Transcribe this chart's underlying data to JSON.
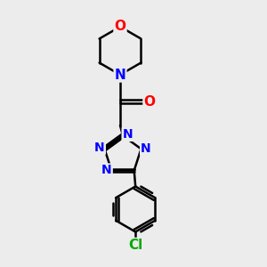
{
  "bg_color": "#ececec",
  "atom_colors": {
    "C": "#000000",
    "N": "#0000ff",
    "O": "#ff0000",
    "Cl": "#00aa00"
  },
  "bond_color": "#000000",
  "bond_width": 1.8,
  "label_fontsize": 11,
  "label_fontsize_small": 10
}
